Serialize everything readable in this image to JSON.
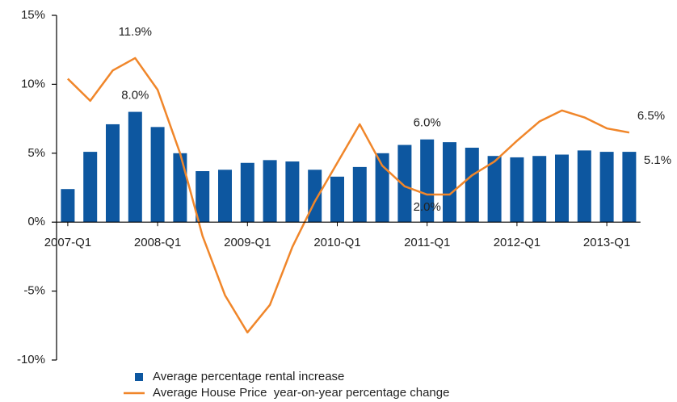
{
  "chart_data": {
    "type": "bar-line",
    "categories": [
      "2007-Q1",
      null,
      null,
      null,
      "2008-Q1",
      null,
      null,
      null,
      "2009-Q1",
      null,
      null,
      null,
      "2010-Q1",
      null,
      null,
      null,
      "2011-Q1",
      null,
      null,
      null,
      "2012-Q1",
      null,
      null,
      null,
      "2013-Q1",
      null
    ],
    "series": [
      {
        "name": "Average percentage rental increase",
        "type": "bar",
        "color": "#0d57a0",
        "values": [
          2.4,
          5.1,
          7.1,
          8.0,
          6.9,
          5.0,
          3.7,
          3.8,
          4.3,
          4.5,
          4.4,
          3.8,
          3.3,
          4.0,
          5.0,
          5.6,
          6.0,
          5.8,
          5.4,
          4.8,
          4.7,
          4.8,
          4.9,
          5.2,
          5.1,
          5.1
        ],
        "value_labels": [
          null,
          null,
          null,
          "8.0%",
          null,
          null,
          null,
          null,
          null,
          null,
          null,
          null,
          null,
          null,
          null,
          null,
          "6.0%",
          null,
          null,
          null,
          null,
          null,
          null,
          null,
          null,
          "5.1%"
        ]
      },
      {
        "name": "Average House Price  year-on-year percentage change",
        "type": "line",
        "color": "#f0862a",
        "values": [
          10.4,
          8.8,
          11.0,
          11.9,
          9.6,
          5.0,
          -1.0,
          -5.3,
          -8.0,
          -6.0,
          -1.8,
          1.5,
          4.3,
          7.1,
          4.1,
          2.6,
          2.0,
          2.0,
          3.4,
          4.4,
          5.9,
          7.3,
          8.1,
          7.6,
          6.8,
          6.5
        ],
        "value_labels": [
          null,
          null,
          null,
          "11.9%",
          null,
          null,
          null,
          null,
          null,
          null,
          null,
          null,
          null,
          null,
          null,
          null,
          "2.0%",
          null,
          null,
          null,
          null,
          null,
          null,
          null,
          null,
          "6.5%"
        ]
      }
    ],
    "ylim": [
      -10,
      15
    ],
    "yticks": [
      {
        "value": -10,
        "label": "-10%"
      },
      {
        "value": -5,
        "label": "-5%"
      },
      {
        "value": 0,
        "label": "0%"
      },
      {
        "value": 5,
        "label": "5%"
      },
      {
        "value": 10,
        "label": "10%"
      },
      {
        "value": 15,
        "label": "15%"
      }
    ],
    "legend": "bottom"
  }
}
